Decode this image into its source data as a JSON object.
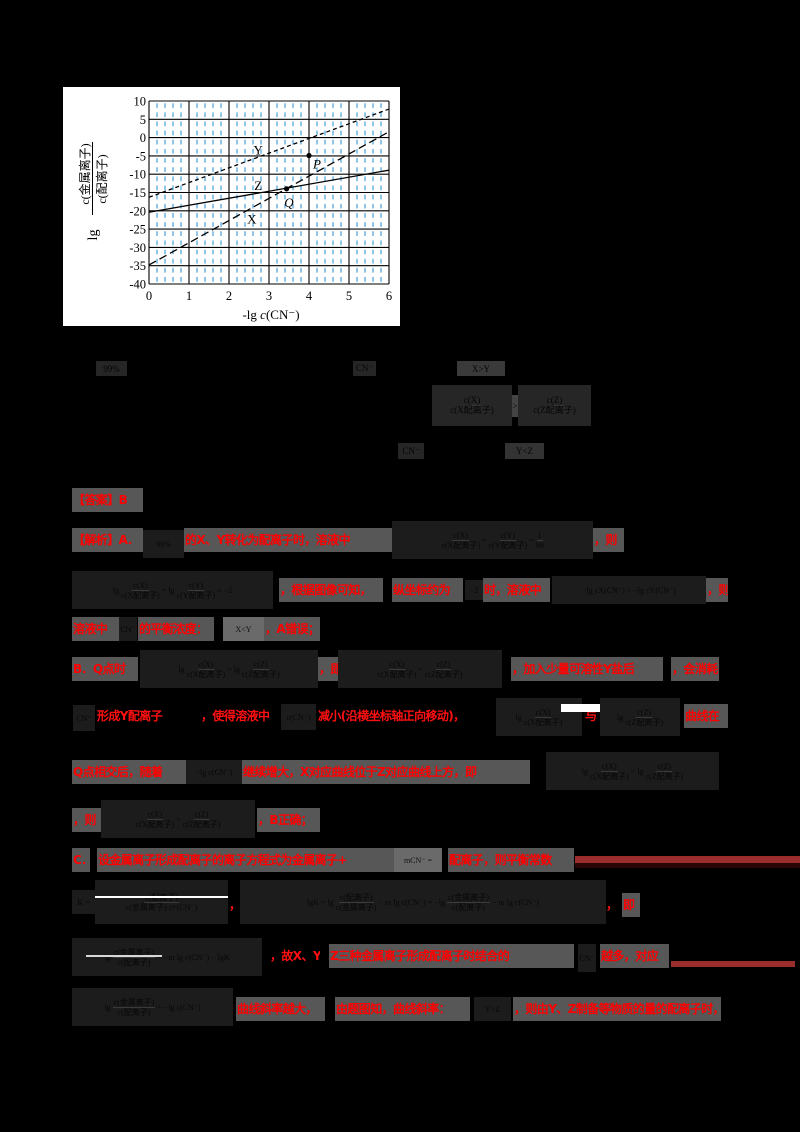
{
  "chart_data": {
    "type": "line",
    "title": "",
    "xlabel": "-lg c(CN⁻)",
    "xlabel_parts": {
      "prefix": "-lg ",
      "var": "c",
      "arg": "(CN⁻)"
    },
    "ylabel": "lg c(金属离子)/c(配离子)",
    "ylabel_parts": {
      "prefix": "lg",
      "numerator": "c(金属离子)",
      "denominator": "c(配离子)"
    },
    "xlim": [
      0,
      6
    ],
    "ylim": [
      -40,
      10
    ],
    "x_ticks": [
      0,
      1,
      2,
      3,
      4,
      5,
      6
    ],
    "y_ticks": [
      10,
      5,
      0,
      -5,
      -10,
      -15,
      -20,
      -25,
      -30,
      -35,
      -40
    ],
    "minor_x_step": 0.2,
    "grid": true,
    "legend": null,
    "series": [
      {
        "name": "Y",
        "style": "short-dashed",
        "x": [
          0,
          6
        ],
        "y": [
          -16.3,
          7.8
        ],
        "label_pos": [
          2.73,
          -3.4
        ]
      },
      {
        "name": "Z",
        "style": "solid",
        "x": [
          0,
          6
        ],
        "y": [
          -20.4,
          -8.9
        ],
        "label_pos": [
          2.73,
          -13.1
        ]
      },
      {
        "name": "X",
        "style": "long-dashed",
        "x": [
          0,
          6
        ],
        "y": [
          -34.8,
          1.6
        ],
        "label_pos": [
          2.57,
          -22.3
        ]
      }
    ],
    "points": [
      {
        "label": "P",
        "x": 4.0,
        "y": -4.9,
        "label_pos": [
          4.2,
          -7.2
        ]
      },
      {
        "label": "Q",
        "x": 3.44,
        "y": -14.0,
        "label_pos": [
          3.5,
          -17.7
        ]
      }
    ],
    "colors": {
      "minor_grid": "#45a0da",
      "major_grid": "#000000",
      "lines": "#000000",
      "background": "#ffffff"
    }
  },
  "question_fragments": {
    "q1": "99%",
    "q2": "CN⁻",
    "q3": "X>Y",
    "q4": {
      "num": "c(X)",
      "den": "c(X配离子)"
    },
    "q5": ">",
    "q6": {
      "num": "c(Z)",
      "den": "c(Z配离子)"
    },
    "q7": "CN⁻",
    "q8": "Y<Z"
  },
  "solution": {
    "answer": "【答案】B",
    "l1": {
      "a": "【解析】A．",
      "b": "99%",
      "c": "的X、Y转化为配离子时，溶液中",
      "f1": {
        "num": "c(X)",
        "den": "c(X配离子)"
      },
      "eq1": "=",
      "f2": {
        "num": "c(Y)",
        "den": "c(Y配离子)"
      },
      "eq2": "=",
      "f3": {
        "num": "1",
        "den": "99"
      },
      "d": "，则"
    },
    "l2": {
      "lg1": "lg",
      "f1": {
        "num": "c(X)",
        "den": "c(X配离子)"
      },
      "eq": "= lg",
      "f2": {
        "num": "c(Y)",
        "den": "c(Y配离子)"
      },
      "approx": "≈ −2",
      "a": "，根据图像可知，",
      "b": "纵坐标约为",
      "v": "−2",
      "c": "时，溶液中",
      "expr": "−lg cX(CN⁻) > −lg cY(CN⁻)",
      "d": "，则"
    },
    "l3": {
      "a": "溶液中",
      "ion": "CN⁻",
      "b": "的平衡浓度：",
      "rel": "X<Y",
      "c": "，A错误；"
    },
    "l4": {
      "a": "B．Q点时",
      "lg1": "lg",
      "f1": {
        "num": "c(X)",
        "den": "c(X配离子)"
      },
      "eq": "= lg",
      "f2": {
        "num": "c(Z)",
        "den": "c(Z配离子)"
      },
      "b": "，即",
      "f3": {
        "num": "c(X)",
        "den": "c(X配离子)"
      },
      "eq2": "=",
      "f4": {
        "num": "c(Z)",
        "den": "c(Z配离子)"
      },
      "c": "，加入少量可溶性Y盐后",
      "d": "，会消耗"
    },
    "l5": {
      "ion": "CN⁻",
      "a": "形成Y配离子",
      "b": "，使得溶液中",
      "conc": "c(CN⁻)",
      "c": "减小(沿横坐标轴正向移动)，",
      "lg1": "lg",
      "f1": {
        "num": "c(X)",
        "den": "c(X配离子)"
      },
      "d": "与",
      "lg2": "lg",
      "f2": {
        "num": "c(Z)",
        "den": "c(Z配离子)"
      },
      "e": "曲线在"
    },
    "l6": {
      "a": "Q点相交后，随着",
      "expr": "−lg c(CN⁻)",
      "b": "继续增大，X对应曲线位于Z对应曲线上方，即",
      "lg1": "lg",
      "f1": {
        "num": "c(X)",
        "den": "c(X配离子)"
      },
      "gt": ">",
      "lg2": "lg",
      "f2": {
        "num": "c(Z)",
        "den": "c(Z配离子)"
      }
    },
    "l7": {
      "a": "，则",
      "f1": {
        "num": "c(X)",
        "den": "c(X配离子)"
      },
      "gt": ">",
      "f2": {
        "num": "c(Z)",
        "den": "c(Z配离子)"
      },
      "b": "，B正确；"
    },
    "l8": {
      "a": "C．",
      "b": "设金属离子形成配离子的离子方程式为金属离子+",
      "expr": "mCN⁻ =",
      "c": "配离子，则平衡常数"
    },
    "l9": {
      "k": "K =",
      "f1": {
        "num": "c(配离子)",
        "den": "c(金属离子)·cᵐ(CN⁻)"
      },
      "comma1": "，",
      "lgk": "lgK = lg",
      "f2": {
        "num": "c(配离子)",
        "den": "c(金属离子)"
      },
      "mid": "− m lg c(CN⁻) = −lg",
      "f3": {
        "num": "c(金属离子)",
        "den": "c(配离子)"
      },
      "tail": "− m lg c(CN⁻)",
      "comma2": "，",
      "a": "即"
    },
    "l10": {
      "lg": "lg",
      "f1": {
        "num": "c(金属离子)",
        "den": "c(配离子)"
      },
      "rest": "= −m lg c(CN⁻) − lgK",
      "a": "，故X、Y、",
      "b": "Z三种金属离子形成配离子时结合的",
      "ion": "CN⁻",
      "c": "越多，对应"
    },
    "l11": {
      "lg": "lg",
      "f1": {
        "num": "c(金属离子)",
        "den": "c(配离子)"
      },
      "rest": "~ −lg c(CN⁻)",
      "a": "曲线斜率越大，",
      "b": "由题图知，曲线斜率：",
      "rel": "Y>Z",
      "c": "，则由Y、Z制备等物质的量的配离子时，"
    }
  },
  "colors": {
    "highlight_bg": "#575757",
    "text_red": "#ff0000",
    "rule_dark_red": "#9b2d2d",
    "page_bg": "#000000"
  }
}
